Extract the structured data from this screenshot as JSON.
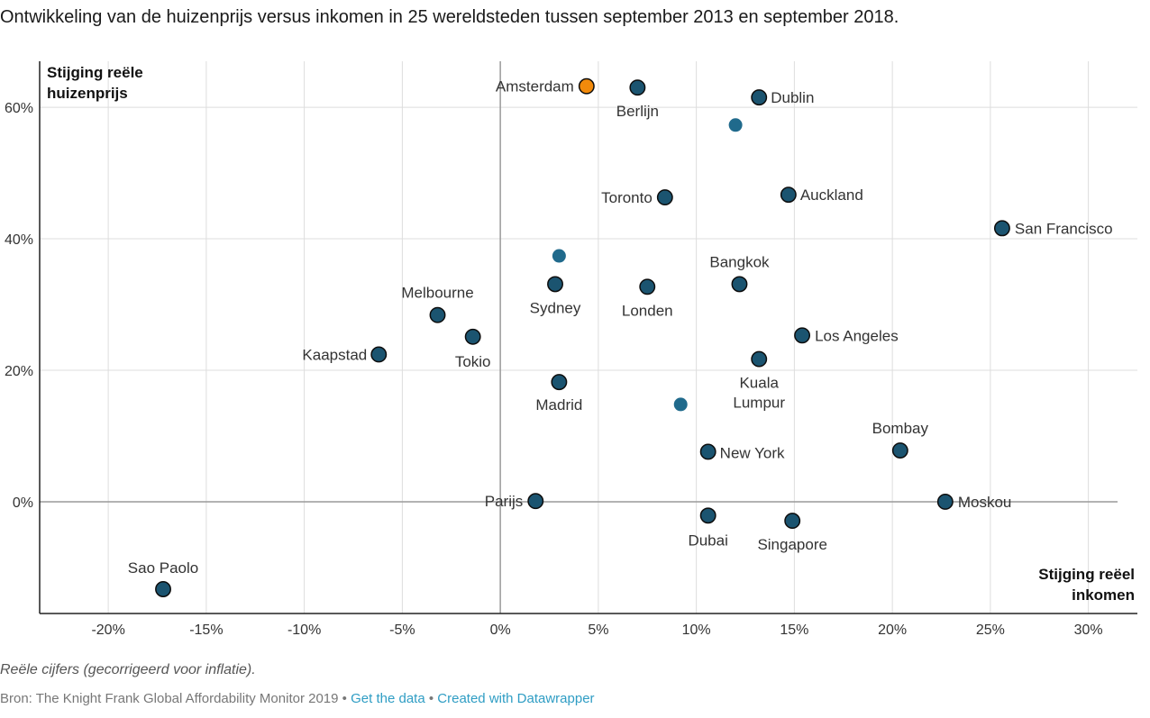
{
  "title": "Ontwikkeling van de huizenprijs versus inkomen in 25 wereldsteden tussen september 2013 en september 2018.",
  "notes": "Reële cijfers (gecorrigeerd voor inflatie).",
  "footer": {
    "source": "Bron: The Knight Frank Global Affordability Monitor 2019",
    "separator": "•",
    "get_data": "Get the data",
    "created_with": "Created with Datawrapper"
  },
  "colors": {
    "point": "#1b5470",
    "point_outline": "#0d0d0d",
    "highlight": "#f28a0b",
    "unlabeled_point": "#206a8c",
    "grid": "#dddddd",
    "zero_axis": "#9a9a9a",
    "link": "#2f9dc4"
  },
  "chart_data": {
    "type": "scatter",
    "title": "Ontwikkeling van de huizenprijs versus inkomen in 25 wereldsteden tussen september 2013 en september 2018.",
    "xlabel": "Stijging reëel inkomen",
    "ylabel": "Stijging reële huizenprijs",
    "x_unit": "%",
    "y_unit": "%",
    "xlim": [
      -23.5,
      32.5
    ],
    "ylim": [
      -17,
      67
    ],
    "x_ticks": [
      -20,
      -15,
      -10,
      -5,
      0,
      5,
      10,
      15,
      20,
      25,
      30
    ],
    "x_tick_labels": [
      "-20%",
      "-15%",
      "-10%",
      "-5%",
      "0%",
      "5%",
      "10%",
      "15%",
      "20%",
      "25%",
      "30%"
    ],
    "y_ticks": [
      0,
      20,
      40,
      60
    ],
    "y_tick_labels": [
      "0%",
      "20%",
      "40%",
      "60%"
    ],
    "grid": true,
    "points": [
      {
        "label": "Amsterdam",
        "x": 4.4,
        "y": 63.2,
        "highlight": true
      },
      {
        "label": "Berlijn",
        "x": 7.0,
        "y": 63.0
      },
      {
        "label": "Dublin",
        "x": 13.2,
        "y": 61.5
      },
      {
        "label": "",
        "x": 12.0,
        "y": 57.3
      },
      {
        "label": "Toronto",
        "x": 8.4,
        "y": 46.3
      },
      {
        "label": "Auckland",
        "x": 14.7,
        "y": 46.7
      },
      {
        "label": "San Francisco",
        "x": 25.6,
        "y": 41.6
      },
      {
        "label": "",
        "x": 3.0,
        "y": 37.4
      },
      {
        "label": "Bangkok",
        "x": 12.2,
        "y": 33.1
      },
      {
        "label": "Sydney",
        "x": 2.8,
        "y": 33.1
      },
      {
        "label": "Londen",
        "x": 7.5,
        "y": 32.7
      },
      {
        "label": "Melbourne",
        "x": -3.2,
        "y": 28.4
      },
      {
        "label": "Los Angeles",
        "x": 15.4,
        "y": 25.3
      },
      {
        "label": "Tokio",
        "x": -1.4,
        "y": 25.1
      },
      {
        "label": "Kaapstad",
        "x": -6.2,
        "y": 22.4
      },
      {
        "label": "Kuala Lumpur",
        "x": 13.2,
        "y": 21.7
      },
      {
        "label": "Madrid",
        "x": 3.0,
        "y": 18.2
      },
      {
        "label": "",
        "x": 9.2,
        "y": 14.8
      },
      {
        "label": "Bombay",
        "x": 20.4,
        "y": 7.8
      },
      {
        "label": "New York",
        "x": 10.6,
        "y": 7.6
      },
      {
        "label": "Parijs",
        "x": 1.8,
        "y": 0.1
      },
      {
        "label": "Moskou",
        "x": 22.7,
        "y": 0.0
      },
      {
        "label": "Dubai",
        "x": 10.6,
        "y": -2.1
      },
      {
        "label": "Singapore",
        "x": 14.9,
        "y": -2.9
      },
      {
        "label": "Sao Paolo",
        "x": -17.2,
        "y": -13.3
      }
    ]
  }
}
